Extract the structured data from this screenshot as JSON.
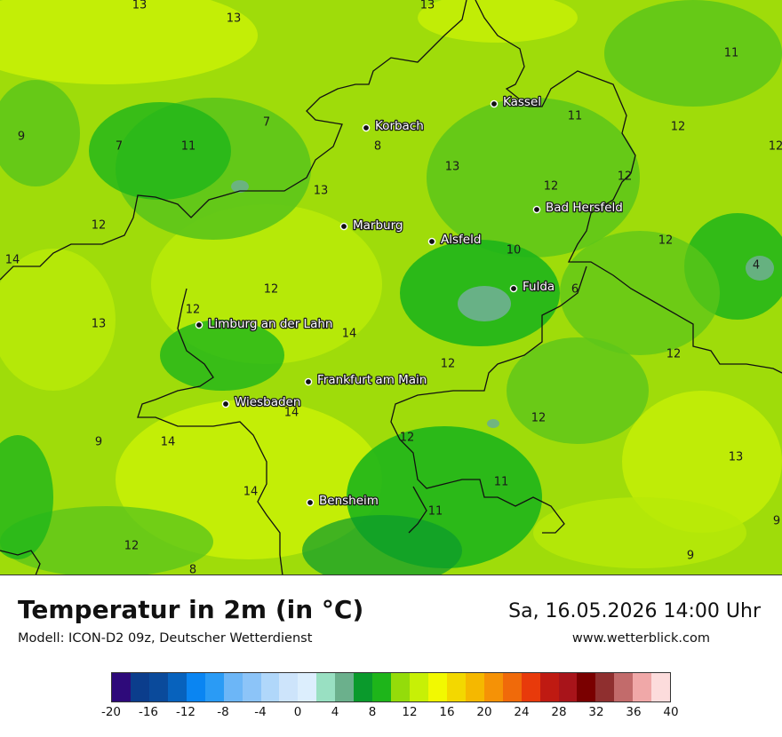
{
  "header": {
    "title": "Temperatur in 2m (in °C)",
    "subtitle": "Modell: ICON-D2 09z, Deutscher Wetterdienst",
    "datetime": "Sa, 16.05.2026 14:00 Uhr",
    "website": "www.wetterblick.com"
  },
  "cities": [
    {
      "name": "Kassel"
    },
    {
      "name": "Korbach"
    },
    {
      "name": "Bad Hersfeld"
    },
    {
      "name": "Marburg"
    },
    {
      "name": "Alsfeld"
    },
    {
      "name": "Fulda"
    },
    {
      "name": "Limburg an der Lahn"
    },
    {
      "name": "Frankfurt am Main"
    },
    {
      "name": "Wiesbaden"
    },
    {
      "name": "Bensheim"
    }
  ],
  "map_values": [
    "13",
    "13",
    "13",
    "11",
    "9",
    "7",
    "7",
    "11",
    "8",
    "11",
    "12",
    "12",
    "13",
    "13",
    "12",
    "12",
    "14",
    "12",
    "10",
    "12",
    "4",
    "6",
    "12",
    "13",
    "14",
    "12",
    "12",
    "14",
    "9",
    "14",
    "12",
    "12",
    "13",
    "14",
    "11",
    "11",
    "12",
    "12",
    "8",
    "9",
    "9"
  ],
  "colorbar": {
    "colors": [
      "#2e0a7a",
      "#0b3d8c",
      "#0a4a9b",
      "#0762bd",
      "#0a85f2",
      "#2a9bf5",
      "#6cb6f7",
      "#8cc4f8",
      "#b0d7fa",
      "#cde4fb",
      "#dceefd",
      "#99e0c2",
      "#6bb08c",
      "#0a9a2c",
      "#1eb51a",
      "#94dc0a",
      "#c7f006",
      "#f2f901",
      "#f3d800",
      "#f5b800",
      "#f59206",
      "#f06a0a",
      "#e83a0b",
      "#bf1a12",
      "#a8141a",
      "#7a0000",
      "#8f2f2f",
      "#c26b6b",
      "#f0a8a8",
      "#fcdcdc"
    ],
    "ticks": [
      "-20",
      "-16",
      "-12",
      "-8",
      "-4",
      "0",
      "4",
      "8",
      "12",
      "16",
      "20",
      "24",
      "28",
      "32",
      "36",
      "40"
    ]
  }
}
